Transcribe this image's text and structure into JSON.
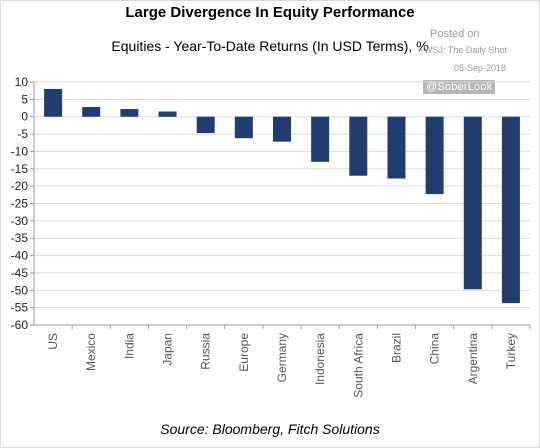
{
  "header": {
    "title": "Large Divergence In Equity Performance",
    "subtitle": "Equities - Year-To-Date Returns (In USD Terms), %"
  },
  "watermark": {
    "posted_on": "Posted on",
    "publication": "WSJ: The Daily Shot",
    "date": "05-Sep-2018",
    "handle": "@SoberLook"
  },
  "footer": {
    "source": "Source: Bloomberg, Fitch Solutions"
  },
  "colors": {
    "bar": "#1f3d6e",
    "grid": "#d9d9d9",
    "axis": "#9a9a9a"
  },
  "chart_data": {
    "type": "bar",
    "title": "Large Divergence In Equity Performance",
    "subtitle": "Equities - Year-To-Date Returns (In USD Terms), %",
    "categories": [
      "US",
      "Mexico",
      "India",
      "Japan",
      "Russia",
      "Europe",
      "Germany",
      "Indonesia",
      "South Africa",
      "Brazil",
      "China",
      "Argentina",
      "Turkey"
    ],
    "values": [
      8,
      2.8,
      2.2,
      1.5,
      -4.7,
      -6.2,
      -7.2,
      -13,
      -17,
      -17.8,
      -22.3,
      -49.7,
      -53.7
    ],
    "ylim": [
      -60,
      10
    ],
    "yticks": [
      10,
      5,
      0,
      -5,
      -10,
      -15,
      -20,
      -25,
      -30,
      -35,
      -40,
      -45,
      -50,
      -55,
      -60
    ],
    "grid": "horizontal",
    "legend": "none",
    "source": "Source: Bloomberg, Fitch Solutions"
  }
}
